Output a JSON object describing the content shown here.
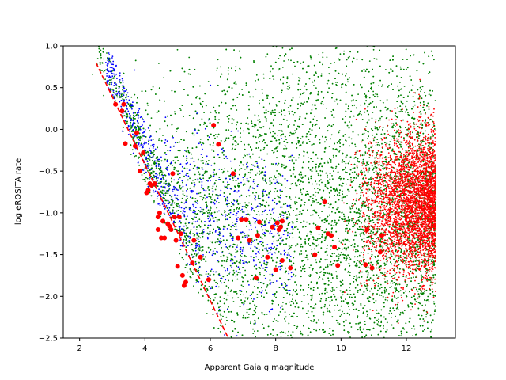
{
  "chart_data": {
    "type": "scatter",
    "xlabel": "Apparent Gaia g magnitude",
    "ylabel": "log eROSITA rate",
    "xlim": [
      1.5,
      13.5
    ],
    "ylim": [
      -2.5,
      1.0
    ],
    "xticks": [
      "2",
      "4",
      "6",
      "8",
      "10",
      "12"
    ],
    "yticks": [
      "1.0",
      "0.5",
      "0.0",
      "−0.5",
      "−1.0",
      "−1.5",
      "−2.0",
      "−2.5"
    ],
    "xtick_values": [
      2,
      4,
      6,
      8,
      10,
      12
    ],
    "ytick_values": [
      1.0,
      0.5,
      0.0,
      -0.5,
      -1.0,
      -1.5,
      -2.0,
      -2.5
    ],
    "grid": false,
    "colors": {
      "blue": "#0000ff",
      "green": "#008000",
      "red": "#ff0000"
    },
    "dashed_line": {
      "color": "#ff0000",
      "points": [
        [
          2.5,
          0.8
        ],
        [
          6.55,
          -2.5
        ]
      ]
    },
    "highlighted_points": {
      "color": "#ff0000",
      "x": [
        3.1,
        3.3,
        3.35,
        3.4,
        3.7,
        3.75,
        3.85,
        3.95,
        4.05,
        4.1,
        4.15,
        4.2,
        4.3,
        4.4,
        4.45,
        4.5,
        4.55,
        4.6,
        4.7,
        4.75,
        4.8,
        4.9,
        4.95,
        5.0,
        5.05,
        5.1,
        5.15,
        5.2,
        5.25,
        5.45,
        5.5,
        5.7,
        5.95,
        6.1,
        6.25,
        6.7,
        6.85,
        6.95,
        7.1,
        7.2,
        7.4,
        7.45,
        7.5,
        7.75,
        7.9,
        8.0,
        8.05,
        8.1,
        8.15,
        8.2,
        8.2,
        8.45,
        9.2,
        9.3,
        9.5,
        9.6,
        9.7,
        9.8,
        9.9,
        10.75,
        10.8,
        10.95,
        11.2,
        11.25,
        4.85,
        4.4
      ],
      "y": [
        0.3,
        0.22,
        0.3,
        -0.17,
        -0.2,
        -0.04,
        -0.5,
        -0.28,
        -0.76,
        -0.73,
        -0.65,
        -0.67,
        -0.65,
        -1.05,
        -1.0,
        -1.3,
        -1.1,
        -1.3,
        -1.13,
        -1.16,
        -1.2,
        -1.05,
        -1.33,
        -1.64,
        -1.05,
        -1.25,
        -1.75,
        -1.87,
        -1.83,
        -1.6,
        -1.33,
        -1.53,
        -1.8,
        0.05,
        -0.18,
        -0.53,
        -1.3,
        -1.08,
        -1.08,
        -1.33,
        -1.78,
        -1.27,
        -1.11,
        -1.53,
        -1.17,
        -1.68,
        -1.12,
        -1.2,
        -1.17,
        -1.1,
        -1.57,
        -1.66,
        -1.5,
        -1.18,
        -0.87,
        -1.25,
        -1.27,
        -1.41,
        -1.63,
        -1.62,
        -1.2,
        -1.66,
        -1.47,
        -1.27,
        -0.53,
        -1.2
      ]
    },
    "series": [
      {
        "color": "blue",
        "x_range": [
          2.8,
          8.5
        ],
        "y_center": -1.0,
        "count": 900
      },
      {
        "color": "green",
        "x_range": [
          2.2,
          12.9
        ],
        "y_center": -1.05,
        "count": 9000
      },
      {
        "color": "red",
        "x_range": [
          10.0,
          12.9
        ],
        "y_center": -0.9,
        "count": 3500
      }
    ]
  }
}
